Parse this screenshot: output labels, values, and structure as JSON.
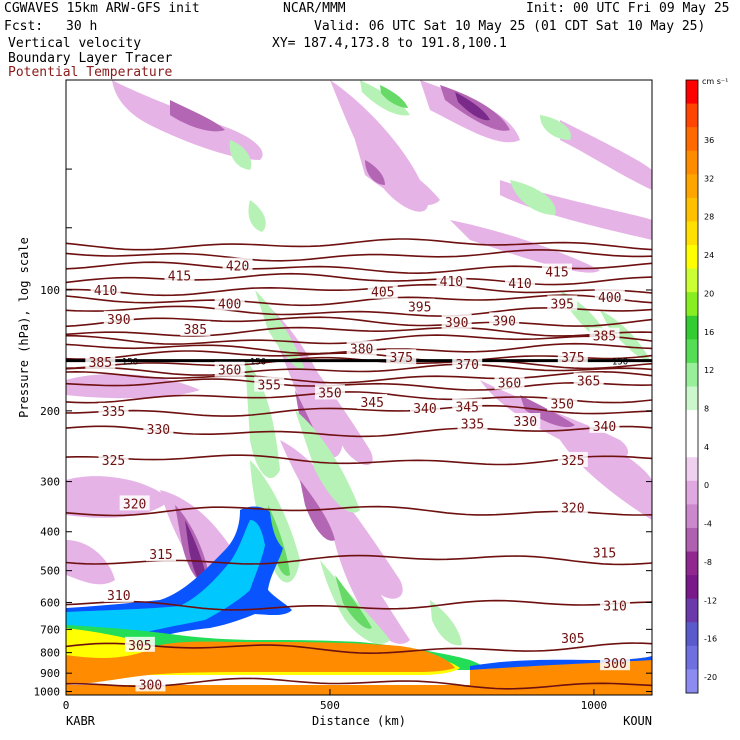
{
  "header": {
    "model": "CGWAVES 15km ARW-GFS init",
    "org": "NCAR/MMM",
    "init": "Init: 00 UTC Fri 09 May 25",
    "fcst_label": "Fcst:",
    "fcst_value": "30 h",
    "valid": "Valid: 06 UTC Sat 10 May 25 (01 CDT Sat 10 May 25)",
    "field1": "Vertical velocity",
    "xy": "XY= 187.4,173.8 to 191.8,100.1",
    "field2": "Boundary Layer Tracer",
    "field3": "Potential Temperature"
  },
  "colors": {
    "theta": "#6e1010",
    "blt_high": "#ff8c00",
    "blt_mid": "#ffd700",
    "wpos": "#90ee90",
    "wneg": "#dda0dd"
  },
  "chart_data": {
    "type": "heatmap",
    "xlabel": "Distance (km)",
    "ylabel": "Pressure (hPa), log scale",
    "x_ticks": [
      "0",
      "500",
      "1000"
    ],
    "x_start": "KABR",
    "x_end": "KOUN",
    "xlim": [
      0,
      1110
    ],
    "ylim": [
      1020,
      30
    ],
    "y_scale": "log",
    "y_ticks": [
      "100",
      "200",
      "300",
      "400",
      "500",
      "600",
      "700",
      "800",
      "900",
      "1000"
    ],
    "colorbar": {
      "unit": "cm s⁻¹",
      "ticks": [
        "36",
        "32",
        "28",
        "24",
        "20",
        "16",
        "12",
        "8",
        "4",
        "0",
        "-4",
        "-8",
        "-12",
        "-16",
        "-20"
      ],
      "colors": [
        "#ff0000",
        "#ff4500",
        "#ff6a00",
        "#ff8c00",
        "#ffa500",
        "#ffc000",
        "#ffe000",
        "#ffff00",
        "#ccff33",
        "#88ee22",
        "#33cc33",
        "#55dd55",
        "#99ee99",
        "#ccf7cc",
        "#ffffff",
        "#ffffff",
        "#f0d0f0",
        "#e0a8e0",
        "#cc88cc",
        "#b060b0",
        "#902890",
        "#7a1a8a",
        "#6a3aaa",
        "#5a5acc",
        "#6f6fe0",
        "#8c8cf0"
      ]
    },
    "isentropes": [
      {
        "theta": 300,
        "p": 955
      },
      {
        "theta": 305,
        "p": 780
      },
      {
        "theta": 310,
        "p": 610
      },
      {
        "theta": 315,
        "p": 470
      },
      {
        "theta": 320,
        "p": 355
      },
      {
        "theta": 325,
        "p": 265
      },
      {
        "theta": 330,
        "p": 225
      },
      {
        "theta": 335,
        "p": 200
      },
      {
        "theta": 340,
        "p": 185
      },
      {
        "theta": 345,
        "p": 172
      },
      {
        "theta": 350,
        "p": 165
      },
      {
        "theta": 355,
        "p": 158
      },
      {
        "theta": 360,
        "p": 152
      },
      {
        "theta": 365,
        "p": 146
      },
      {
        "theta": 370,
        "p": 140
      },
      {
        "theta": 375,
        "p": 133
      },
      {
        "theta": 380,
        "p": 127
      },
      {
        "theta": 385,
        "p": 120
      },
      {
        "theta": 390,
        "p": 113
      },
      {
        "theta": 395,
        "p": 106
      },
      {
        "theta": 400,
        "p": 100
      },
      {
        "theta": 405,
        "p": 94
      },
      {
        "theta": 410,
        "p": 88
      },
      {
        "theta": 415,
        "p": 82
      },
      {
        "theta": 420,
        "p": 77
      }
    ],
    "contour_labels": [
      {
        "text": "300",
        "x": 160,
        "p": 960
      },
      {
        "text": "300",
        "x": 1040,
        "p": 850
      },
      {
        "text": "305",
        "x": 140,
        "p": 765
      },
      {
        "text": "305",
        "x": 960,
        "p": 735
      },
      {
        "text": "310",
        "x": 100,
        "p": 575
      },
      {
        "text": "310",
        "x": 1040,
        "p": 610
      },
      {
        "text": "315",
        "x": 180,
        "p": 455
      },
      {
        "text": "315",
        "x": 1020,
        "p": 450
      },
      {
        "text": "320",
        "x": 130,
        "p": 340
      },
      {
        "text": "320",
        "x": 960,
        "p": 348
      },
      {
        "text": "325",
        "x": 90,
        "p": 265
      },
      {
        "text": "325",
        "x": 960,
        "p": 265
      },
      {
        "text": "330",
        "x": 175,
        "p": 222
      },
      {
        "text": "330",
        "x": 870,
        "p": 212
      },
      {
        "text": "335",
        "x": 90,
        "p": 200
      },
      {
        "text": "335",
        "x": 770,
        "p": 215
      },
      {
        "text": "340",
        "x": 680,
        "p": 197
      },
      {
        "text": "340",
        "x": 1020,
        "p": 218
      },
      {
        "text": "345",
        "x": 580,
        "p": 190
      },
      {
        "text": "345",
        "x": 760,
        "p": 195
      },
      {
        "text": "350",
        "x": 500,
        "p": 180
      },
      {
        "text": "350",
        "x": 940,
        "p": 192
      },
      {
        "text": "355",
        "x": 385,
        "p": 172
      },
      {
        "text": "360",
        "x": 310,
        "p": 158
      },
      {
        "text": "360",
        "x": 840,
        "p": 170
      },
      {
        "text": "365",
        "x": 990,
        "p": 168
      },
      {
        "text": "370",
        "x": 760,
        "p": 153
      },
      {
        "text": "375",
        "x": 635,
        "p": 147
      },
      {
        "text": "375",
        "x": 960,
        "p": 147
      },
      {
        "text": "380",
        "x": 560,
        "p": 140
      },
      {
        "text": "385",
        "x": 65,
        "p": 151
      },
      {
        "text": "385",
        "x": 245,
        "p": 125
      },
      {
        "text": "385",
        "x": 1020,
        "p": 130
      },
      {
        "text": "390",
        "x": 100,
        "p": 118
      },
      {
        "text": "390",
        "x": 740,
        "p": 120
      },
      {
        "text": "390",
        "x": 830,
        "p": 119
      },
      {
        "text": "395",
        "x": 670,
        "p": 110
      },
      {
        "text": "395",
        "x": 940,
        "p": 108
      },
      {
        "text": "400",
        "x": 310,
        "p": 108
      },
      {
        "text": "400",
        "x": 1030,
        "p": 104
      },
      {
        "text": "405",
        "x": 600,
        "p": 101
      },
      {
        "text": "410",
        "x": 75,
        "p": 100
      },
      {
        "text": "410",
        "x": 730,
        "p": 95
      },
      {
        "text": "410",
        "x": 860,
        "p": 96
      },
      {
        "text": "415",
        "x": 215,
        "p": 92
      },
      {
        "text": "415",
        "x": 930,
        "p": 90
      },
      {
        "text": "420",
        "x": 325,
        "p": 87
      }
    ],
    "marker_150_label": "150"
  }
}
